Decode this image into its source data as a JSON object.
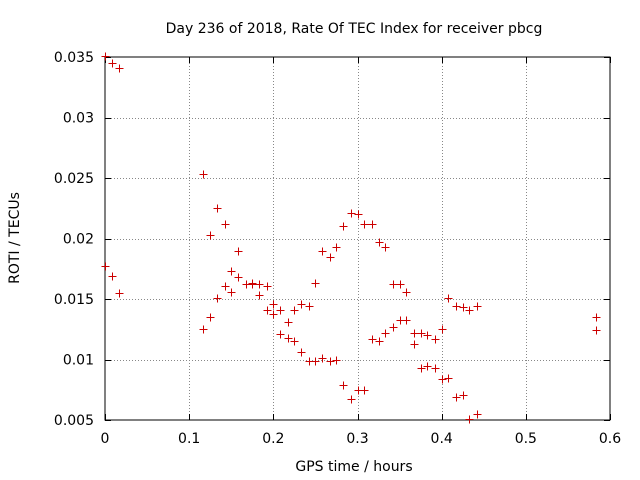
{
  "chart_data": {
    "type": "scatter",
    "title": "Day 236 of 2018, Rate Of TEC Index for receiver pbcg",
    "xlabel": "GPS time / hours",
    "ylabel": "ROTI / TECUs",
    "xlim": [
      0,
      0.6
    ],
    "ylim": [
      0.005,
      0.035
    ],
    "xticks": [
      0,
      0.1,
      0.2,
      0.3,
      0.4,
      0.5,
      0.6
    ],
    "xtick_labels": [
      "0",
      "0.1",
      "0.2",
      "0.3",
      "0.4",
      "0.5",
      "0.6"
    ],
    "yticks": [
      0.005,
      0.01,
      0.015,
      0.02,
      0.025,
      0.03,
      0.035
    ],
    "ytick_labels": [
      "0.005",
      "0.01",
      "0.015",
      "0.02",
      "0.025",
      "0.03",
      "0.035"
    ],
    "grid": true,
    "marker": "+",
    "color": "#cc0000",
    "series": [
      {
        "name": "ROTI",
        "points": [
          [
            0.0,
            0.0351
          ],
          [
            0.008,
            0.0345
          ],
          [
            0.017,
            0.0341
          ],
          [
            0.0,
            0.0177
          ],
          [
            0.008,
            0.0169
          ],
          [
            0.017,
            0.0155
          ],
          [
            0.117,
            0.0253
          ],
          [
            0.117,
            0.0125
          ],
          [
            0.125,
            0.0203
          ],
          [
            0.125,
            0.0135
          ],
          [
            0.133,
            0.0225
          ],
          [
            0.133,
            0.0151
          ],
          [
            0.142,
            0.0212
          ],
          [
            0.142,
            0.0161
          ],
          [
            0.15,
            0.0173
          ],
          [
            0.15,
            0.0156
          ],
          [
            0.158,
            0.019
          ],
          [
            0.158,
            0.0168
          ],
          [
            0.167,
            0.0162
          ],
          [
            0.175,
            0.0162
          ],
          [
            0.175,
            0.0163
          ],
          [
            0.183,
            0.0162
          ],
          [
            0.183,
            0.0153
          ],
          [
            0.192,
            0.0161
          ],
          [
            0.192,
            0.0141
          ],
          [
            0.2,
            0.0146
          ],
          [
            0.2,
            0.0138
          ],
          [
            0.208,
            0.0141
          ],
          [
            0.208,
            0.0121
          ],
          [
            0.217,
            0.0131
          ],
          [
            0.217,
            0.0118
          ],
          [
            0.225,
            0.0141
          ],
          [
            0.225,
            0.0115
          ],
          [
            0.233,
            0.0146
          ],
          [
            0.233,
            0.0106
          ],
          [
            0.242,
            0.0144
          ],
          [
            0.242,
            0.0099
          ],
          [
            0.25,
            0.0163
          ],
          [
            0.25,
            0.0099
          ],
          [
            0.258,
            0.019
          ],
          [
            0.258,
            0.0101
          ],
          [
            0.267,
            0.0185
          ],
          [
            0.267,
            0.0099
          ],
          [
            0.275,
            0.0193
          ],
          [
            0.275,
            0.01
          ],
          [
            0.283,
            0.021
          ],
          [
            0.283,
            0.0079
          ],
          [
            0.292,
            0.0221
          ],
          [
            0.292,
            0.0067
          ],
          [
            0.3,
            0.022
          ],
          [
            0.3,
            0.0075
          ],
          [
            0.308,
            0.0212
          ],
          [
            0.308,
            0.0075
          ],
          [
            0.317,
            0.0212
          ],
          [
            0.317,
            0.0117
          ],
          [
            0.325,
            0.0197
          ],
          [
            0.325,
            0.0115
          ],
          [
            0.333,
            0.0193
          ],
          [
            0.333,
            0.0122
          ],
          [
            0.342,
            0.0162
          ],
          [
            0.342,
            0.0127
          ],
          [
            0.35,
            0.0162
          ],
          [
            0.35,
            0.0133
          ],
          [
            0.358,
            0.0156
          ],
          [
            0.358,
            0.0133
          ],
          [
            0.367,
            0.0122
          ],
          [
            0.367,
            0.0113
          ],
          [
            0.375,
            0.0122
          ],
          [
            0.375,
            0.0093
          ],
          [
            0.383,
            0.012
          ],
          [
            0.383,
            0.0095
          ],
          [
            0.392,
            0.0117
          ],
          [
            0.392,
            0.0093
          ],
          [
            0.4,
            0.0125
          ],
          [
            0.4,
            0.0084
          ],
          [
            0.408,
            0.0151
          ],
          [
            0.408,
            0.0085
          ],
          [
            0.417,
            0.0144
          ],
          [
            0.417,
            0.0069
          ],
          [
            0.425,
            0.0143
          ],
          [
            0.425,
            0.0071
          ],
          [
            0.433,
            0.0141
          ],
          [
            0.433,
            0.0051
          ],
          [
            0.442,
            0.0144
          ],
          [
            0.442,
            0.0055
          ],
          [
            0.583,
            0.0135
          ],
          [
            0.583,
            0.0124
          ]
        ]
      }
    ]
  }
}
